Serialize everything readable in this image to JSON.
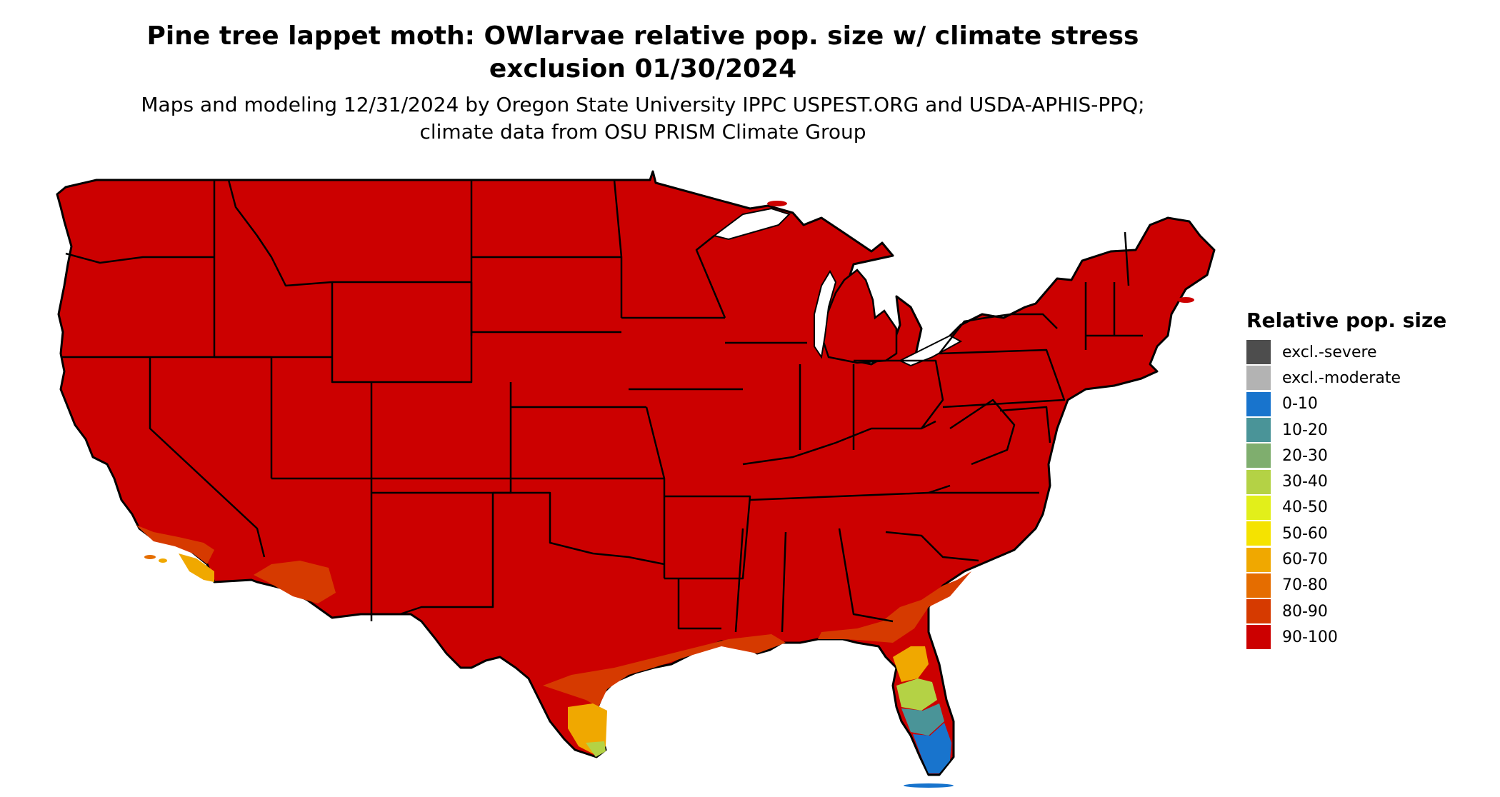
{
  "title": "Pine tree lappet moth: OWlarvae relative pop. size w/ climate stress exclusion 01/30/2024",
  "subtitle": "Maps and modeling 12/31/2024 by Oregon State University IPPC USPEST.ORG and USDA-APHIS-PPQ; climate data from OSU PRISM Climate Group",
  "legend": {
    "title": "Relative pop. size",
    "items": [
      {
        "label": "excl.-severe",
        "color": "#4d4d4d"
      },
      {
        "label": "excl.-moderate",
        "color": "#b3b3b3"
      },
      {
        "label": "0-10",
        "color": "#1874cd"
      },
      {
        "label": "10-20",
        "color": "#4a9498"
      },
      {
        "label": "20-30",
        "color": "#7fae6e"
      },
      {
        "label": "30-40",
        "color": "#b4d245"
      },
      {
        "label": "40-50",
        "color": "#e2ef1a"
      },
      {
        "label": "50-60",
        "color": "#f5e300"
      },
      {
        "label": "60-70",
        "color": "#f0a800"
      },
      {
        "label": "70-80",
        "color": "#e56d00"
      },
      {
        "label": "80-90",
        "color": "#d63a00"
      },
      {
        "label": "90-100",
        "color": "#cc0000"
      }
    ]
  },
  "map": {
    "region": "conterminous United States",
    "dominant_class": "90-100"
  }
}
